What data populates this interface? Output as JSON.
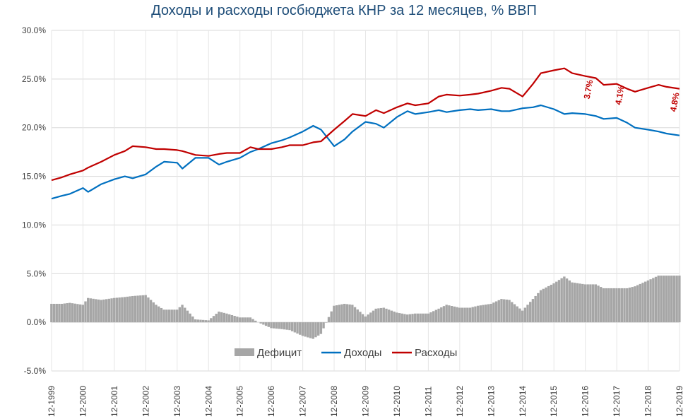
{
  "chart_data": {
    "type": "line",
    "title": "Доходы и расходы госбюджета КНР за 12 месяцев, % ВВП",
    "xlabel": "",
    "ylabel": "",
    "ylim": [
      -5,
      30
    ],
    "y_ticks": [
      "30.0%",
      "25.0%",
      "20.0%",
      "15.0%",
      "10.0%",
      "5.0%",
      "0.0%",
      "-5.0%"
    ],
    "y_tick_values": [
      30,
      25,
      20,
      15,
      10,
      5,
      0,
      -5
    ],
    "x_range": [
      1999.917,
      2019.917
    ],
    "x_ticks": [
      "12-1999",
      "12-2000",
      "12-2001",
      "12-2002",
      "12-2003",
      "12-2004",
      "12-2005",
      "12-2006",
      "12-2007",
      "12-2008",
      "12-2009",
      "12-2010",
      "12-2011",
      "12-2012",
      "12-2013",
      "12-2014",
      "12-2015",
      "12-2016",
      "12-2017",
      "12-2018",
      "12-2019"
    ],
    "grid": true,
    "legend_placement": "bottom",
    "legend": [
      "Дефицит",
      "Доходы",
      "Расходы"
    ],
    "colors": {
      "deficit": "#a6a6a6",
      "revenue": "#0070c0",
      "expenses": "#c00000"
    },
    "series": [
      {
        "name": "Доходы",
        "type": "line",
        "x": [
          1999.917,
          2000.25,
          2000.5,
          2000.917,
          2001.083,
          2001.5,
          2001.917,
          2002.25,
          2002.5,
          2002.917,
          2003.25,
          2003.5,
          2003.917,
          2004.083,
          2004.5,
          2004.917,
          2005.25,
          2005.5,
          2005.917,
          2006.25,
          2006.5,
          2006.917,
          2007.25,
          2007.5,
          2007.917,
          2008.25,
          2008.5,
          2008.917,
          2009.25,
          2009.5,
          2009.917,
          2010.25,
          2010.5,
          2010.917,
          2011.25,
          2011.5,
          2011.917,
          2012.25,
          2012.5,
          2012.917,
          2013.25,
          2013.5,
          2013.917,
          2014.25,
          2014.5,
          2014.917,
          2015.25,
          2015.5,
          2015.917,
          2016.25,
          2016.5,
          2016.917,
          2017.25,
          2017.5,
          2017.917,
          2018.25,
          2018.5,
          2018.917,
          2019.25,
          2019.5,
          2019.917
        ],
        "values": [
          12.7,
          13.0,
          13.2,
          13.8,
          13.4,
          14.2,
          14.7,
          15.0,
          14.8,
          15.2,
          16.0,
          16.5,
          16.4,
          15.8,
          16.9,
          16.9,
          16.2,
          16.5,
          16.9,
          17.5,
          17.8,
          18.4,
          18.7,
          19.0,
          19.6,
          20.2,
          19.8,
          18.1,
          18.8,
          19.6,
          20.6,
          20.4,
          20.0,
          21.1,
          21.7,
          21.4,
          21.6,
          21.8,
          21.6,
          21.8,
          21.9,
          21.8,
          21.9,
          21.7,
          21.7,
          22.0,
          22.1,
          22.3,
          21.9,
          21.4,
          21.5,
          21.4,
          21.2,
          20.9,
          21.0,
          20.5,
          20.0,
          19.8,
          19.6,
          19.4,
          19.2
        ]
      },
      {
        "name": "Расходы",
        "type": "line",
        "x": [
          1999.917,
          2000.25,
          2000.5,
          2000.917,
          2001.083,
          2001.5,
          2001.917,
          2002.25,
          2002.5,
          2002.917,
          2003.25,
          2003.5,
          2003.917,
          2004.083,
          2004.5,
          2004.917,
          2005.25,
          2005.5,
          2005.917,
          2006.25,
          2006.5,
          2006.917,
          2007.25,
          2007.5,
          2007.917,
          2008.25,
          2008.5,
          2008.917,
          2009.25,
          2009.5,
          2009.917,
          2010.25,
          2010.5,
          2010.917,
          2011.25,
          2011.5,
          2011.917,
          2012.25,
          2012.5,
          2012.917,
          2013.25,
          2013.5,
          2013.917,
          2014.25,
          2014.5,
          2014.917,
          2015.25,
          2015.5,
          2015.917,
          2016.25,
          2016.5,
          2016.917,
          2017.25,
          2017.5,
          2017.917,
          2018.25,
          2018.5,
          2018.917,
          2019.25,
          2019.5,
          2019.917
        ],
        "values": [
          14.6,
          14.9,
          15.2,
          15.6,
          15.9,
          16.5,
          17.2,
          17.6,
          18.1,
          18.0,
          17.8,
          17.8,
          17.7,
          17.6,
          17.2,
          17.1,
          17.3,
          17.4,
          17.4,
          18.0,
          17.8,
          17.8,
          18.0,
          18.2,
          18.2,
          18.5,
          18.6,
          19.8,
          20.7,
          21.4,
          21.2,
          21.8,
          21.5,
          22.1,
          22.5,
          22.3,
          22.5,
          23.2,
          23.4,
          23.3,
          23.4,
          23.5,
          23.8,
          24.1,
          24.0,
          23.2,
          24.5,
          25.6,
          25.9,
          26.1,
          25.6,
          25.3,
          25.1,
          24.4,
          24.5,
          24.0,
          23.7,
          24.1,
          24.4,
          24.2,
          24.0
        ]
      },
      {
        "name": "Дефицит",
        "type": "bar",
        "x": [
          1999.917,
          2000.25,
          2000.5,
          2000.917,
          2001.083,
          2001.5,
          2001.917,
          2002.25,
          2002.5,
          2002.917,
          2003.25,
          2003.5,
          2003.917,
          2004.083,
          2004.5,
          2004.917,
          2005.25,
          2005.5,
          2005.917,
          2006.25,
          2006.5,
          2006.917,
          2007.25,
          2007.5,
          2007.917,
          2008.25,
          2008.5,
          2008.917,
          2009.25,
          2009.5,
          2009.917,
          2010.25,
          2010.5,
          2010.917,
          2011.25,
          2011.5,
          2011.917,
          2012.25,
          2012.5,
          2012.917,
          2013.25,
          2013.5,
          2013.917,
          2014.25,
          2014.5,
          2014.917,
          2015.25,
          2015.5,
          2015.917,
          2016.25,
          2016.5,
          2016.917,
          2017.25,
          2017.5,
          2017.917,
          2018.25,
          2018.5,
          2018.917,
          2019.25,
          2019.5,
          2019.917
        ],
        "values": [
          1.9,
          1.9,
          2.0,
          1.8,
          2.5,
          2.3,
          2.5,
          2.6,
          2.7,
          2.8,
          1.8,
          1.3,
          1.3,
          1.8,
          0.3,
          0.2,
          1.1,
          0.9,
          0.5,
          0.5,
          0.0,
          -0.6,
          -0.7,
          -0.8,
          -1.4,
          -1.7,
          -1.2,
          1.7,
          1.9,
          1.8,
          0.6,
          1.4,
          1.5,
          1.0,
          0.8,
          0.9,
          0.9,
          1.4,
          1.8,
          1.5,
          1.5,
          1.7,
          1.9,
          2.4,
          2.3,
          1.2,
          2.4,
          3.3,
          4.0,
          4.7,
          4.1,
          3.9,
          3.9,
          3.5,
          3.5,
          3.5,
          3.7,
          4.3,
          4.8,
          4.8,
          4.8
        ]
      }
    ],
    "annotations": [
      {
        "text": "3.7%",
        "x": 2017.05,
        "y": 22.9
      },
      {
        "text": "4.1%",
        "x": 2018.05,
        "y": 22.3
      },
      {
        "text": "4.8%",
        "x": 2019.8,
        "y": 21.6
      }
    ]
  }
}
